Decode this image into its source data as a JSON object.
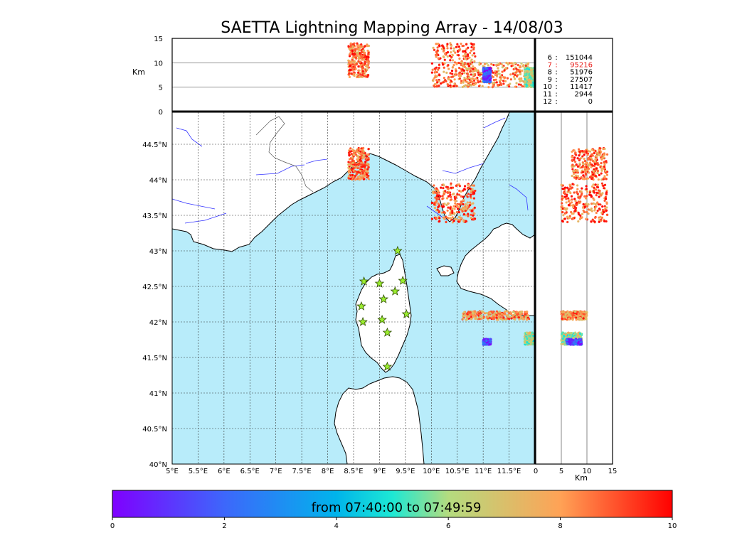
{
  "chart_data": {
    "type": "scatter",
    "title": "SAETTA Lightning Mapping Array - 14/08/03",
    "map": {
      "lon_range": [
        5,
        12
      ],
      "lat_range": [
        40,
        44.95
      ],
      "x_ticks": [
        "5°E",
        "5.5°E",
        "6°E",
        "6.5°E",
        "7°E",
        "7.5°E",
        "8°E",
        "8.5°E",
        "9°E",
        "9.5°E",
        "10°E",
        "10.5°E",
        "11°E",
        "11.5°E"
      ],
      "x_tick_values": [
        5,
        5.5,
        6,
        6.5,
        7,
        7.5,
        8,
        8.5,
        9,
        9.5,
        10,
        10.5,
        11,
        11.5
      ],
      "y_ticks": [
        "40°N",
        "40.5°N",
        "41°N",
        "41.5°N",
        "42°N",
        "42.5°N",
        "43°N",
        "43.5°N",
        "44°N",
        "44.5°N"
      ],
      "y_tick_values": [
        40,
        40.5,
        41,
        41.5,
        42,
        42.5,
        43,
        43.5,
        44,
        44.5
      ],
      "grid": true
    },
    "altitude": {
      "unit_label": "Km",
      "range": [
        0,
        15
      ],
      "ticks": [
        "0",
        "5",
        "10",
        "15"
      ],
      "tick_values": [
        0,
        5,
        10,
        15
      ],
      "reference_lines": [
        5,
        10
      ]
    },
    "station_counts": [
      {
        "stations": "6",
        "count": "151044",
        "color": "#000000"
      },
      {
        "stations": "7",
        "count": "95216",
        "color": "#e8201c"
      },
      {
        "stations": "8",
        "count": "51976",
        "color": "#000000"
      },
      {
        "stations": "9",
        "count": "27507",
        "color": "#000000"
      },
      {
        "stations": "10",
        "count": "11417",
        "color": "#000000"
      },
      {
        "stations": "11",
        "count": "2944",
        "color": "#000000"
      },
      {
        "stations": "12",
        "count": "0",
        "color": "#000000"
      }
    ],
    "stations": [
      {
        "lon": 9.35,
        "lat": 43.0
      },
      {
        "lon": 8.7,
        "lat": 42.57
      },
      {
        "lon": 9.0,
        "lat": 42.54
      },
      {
        "lon": 9.45,
        "lat": 42.58
      },
      {
        "lon": 9.3,
        "lat": 42.43
      },
      {
        "lon": 9.08,
        "lat": 42.32
      },
      {
        "lon": 8.65,
        "lat": 42.22
      },
      {
        "lon": 9.52,
        "lat": 42.11
      },
      {
        "lon": 9.05,
        "lat": 42.03
      },
      {
        "lon": 8.68,
        "lat": 42.0
      },
      {
        "lon": 9.15,
        "lat": 41.85
      },
      {
        "lon": 9.15,
        "lat": 41.37
      }
    ],
    "clusters": [
      {
        "lon": [
          8.4,
          8.8
        ],
        "lat": [
          44.0,
          44.45
        ],
        "alt": [
          7,
          14
        ],
        "time": 8.6
      },
      {
        "lon": [
          10.0,
          10.85
        ],
        "lat": [
          43.4,
          43.95
        ],
        "alt": [
          5,
          14
        ],
        "time": 8.8
      },
      {
        "lon": [
          10.6,
          11.9
        ],
        "lat": [
          42.03,
          42.15
        ],
        "alt": [
          5,
          10
        ],
        "time": 8.2
      },
      {
        "lon": [
          11.8,
          12.0
        ],
        "lat": [
          41.68,
          41.85
        ],
        "alt": [
          5,
          9
        ],
        "time": 6.2
      },
      {
        "lon": [
          11.0,
          11.15
        ],
        "lat": [
          41.68,
          41.76
        ],
        "alt": [
          6,
          9
        ],
        "time": 1.2
      }
    ],
    "colorbar": {
      "label": "from 07:40:00 to 07:49:59",
      "range": [
        0,
        10
      ],
      "ticks": [
        "0",
        "2",
        "4",
        "6",
        "8",
        "10"
      ],
      "tick_values": [
        0,
        2,
        4,
        6,
        8,
        10
      ]
    }
  }
}
